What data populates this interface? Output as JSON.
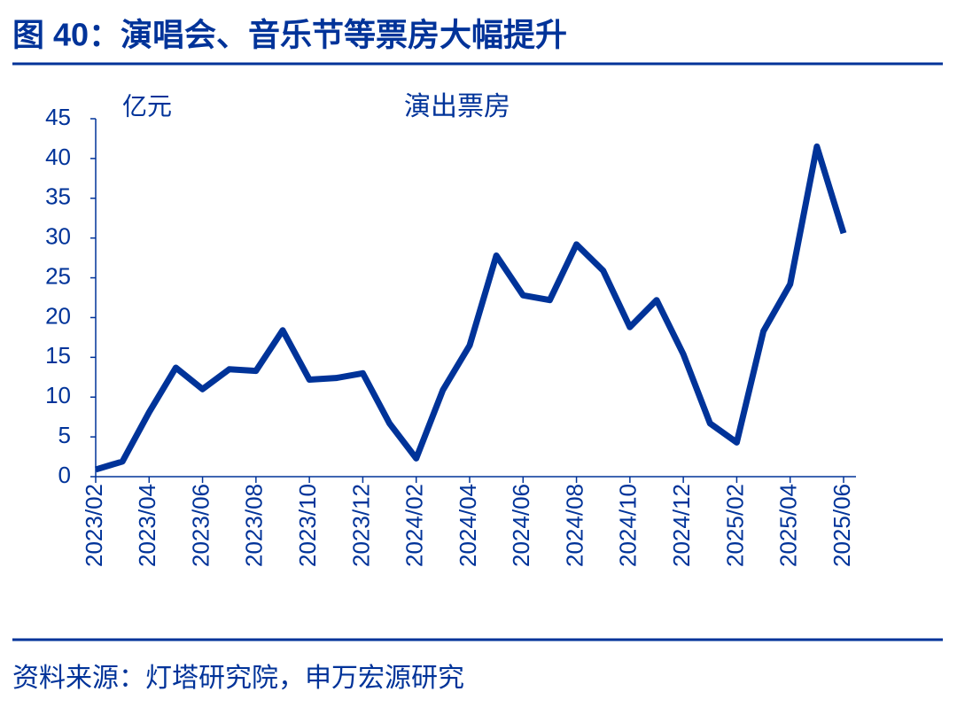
{
  "title": "图 40：演唱会、音乐节等票房大幅提升",
  "source": "资料来源：灯塔研究院，申万宏源研究",
  "chart_data": {
    "type": "line",
    "title": "演出票房",
    "y_axis_label": "亿元",
    "color": "#003399",
    "categories": [
      "2023/02",
      null,
      "2023/04",
      null,
      "2023/06",
      null,
      "2023/08",
      null,
      "2023/10",
      null,
      "2023/12",
      null,
      "2024/02",
      null,
      "2024/04",
      null,
      "2024/06",
      null,
      "2024/08",
      null,
      "2024/10",
      null,
      "2024/12",
      null,
      "2025/02",
      null,
      "2025/04",
      null,
      "2025/06"
    ],
    "values": [
      0.9,
      1.9,
      8.1,
      13.7,
      11.0,
      13.5,
      13.3,
      18.4,
      12.2,
      12.4,
      13.0,
      6.7,
      2.3,
      10.9,
      16.5,
      27.8,
      22.8,
      22.2,
      29.2,
      25.9,
      18.8,
      22.2,
      15.4,
      6.7,
      4.3,
      18.3,
      24.2,
      41.5,
      30.6
    ],
    "ylim": [
      0,
      45
    ],
    "yticks": [
      0,
      5,
      10,
      15,
      20,
      25,
      30,
      35,
      40,
      45
    ],
    "grid": false
  }
}
